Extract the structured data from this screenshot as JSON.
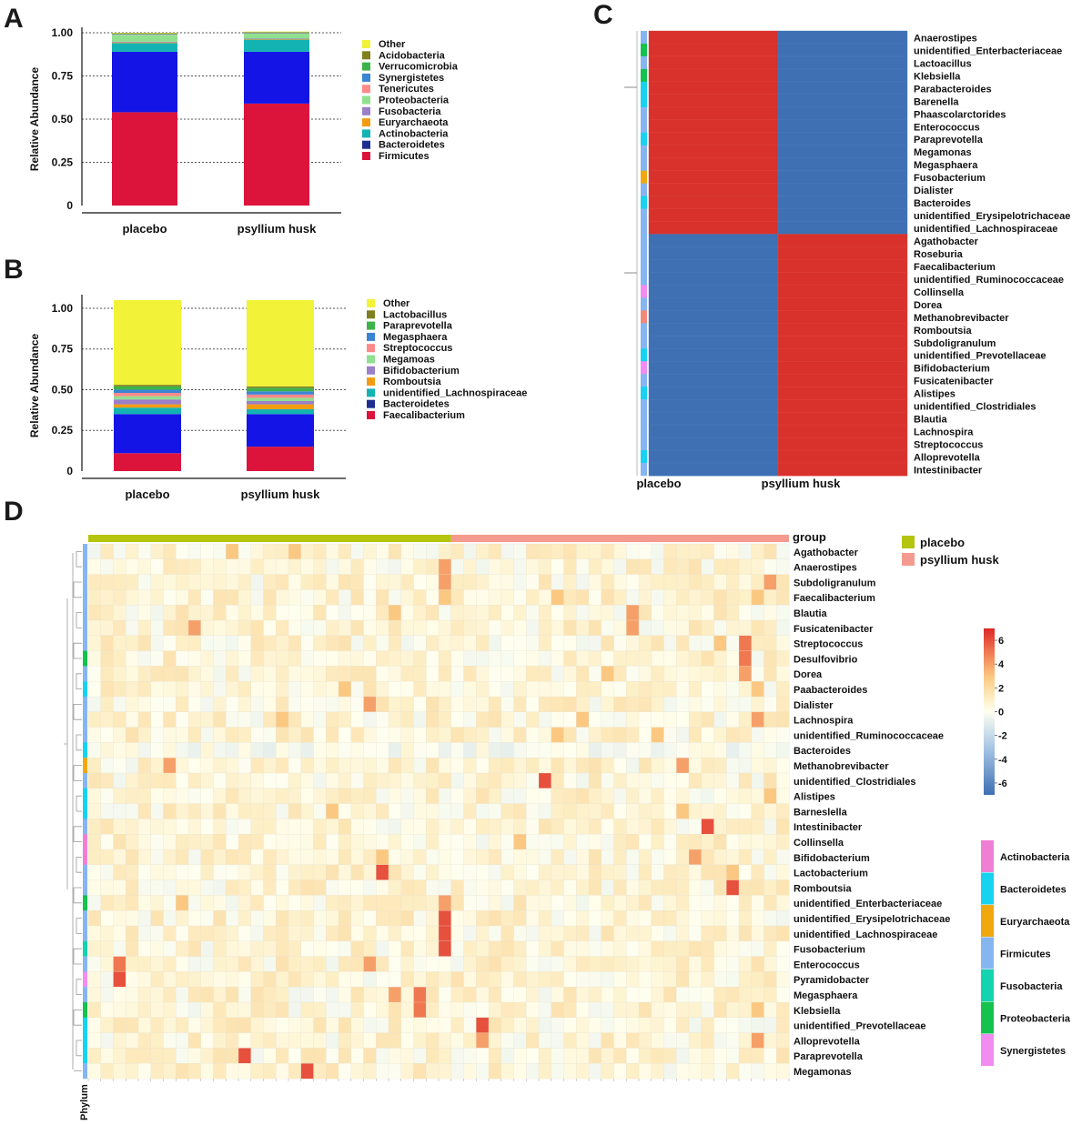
{
  "panels": {
    "A": "A",
    "B": "B",
    "C": "C",
    "D": "D"
  },
  "chart_data": [
    {
      "panel": "A",
      "type": "bar",
      "stacked": true,
      "ylabel": "Relative Abundance",
      "xlabel": "",
      "ylim": [
        0,
        1
      ],
      "yticks": [
        "0",
        "0.25",
        "0.50",
        "0.75",
        "1.00"
      ],
      "yticks_values": [
        0,
        0.25,
        0.5,
        0.75,
        1.0
      ],
      "grid": "dotted horizontal",
      "legend_position": "right",
      "categories": [
        "placebo",
        "psyllium husk"
      ],
      "series": [
        {
          "name": "Firmicutes",
          "color": "#dc143c",
          "values": [
            0.54,
            0.59
          ]
        },
        {
          "name": "Bacteroidetes",
          "color": "#1f2f8f",
          "values": [
            0.0,
            0.0
          ]
        },
        {
          "name": "Actinobacteria",
          "color": "#14b3b3",
          "values": [
            0.05,
            0.07
          ]
        },
        {
          "name": "Euryarchaeota",
          "color": "#f39c12",
          "values": [
            0.004,
            0.003
          ]
        },
        {
          "name": "Fusobacteria",
          "color": "#9b7fc9",
          "values": [
            0.004,
            0.003
          ]
        },
        {
          "name": "Proteobacteria",
          "color": "#90e090",
          "values": [
            0.04,
            0.03
          ]
        },
        {
          "name": "Tenericutes",
          "color": "#ff8888",
          "values": [
            0.003,
            0.002
          ]
        },
        {
          "name": "Synergistetes",
          "color": "#3b84d4",
          "values": [
            0.002,
            0.002
          ]
        },
        {
          "name": "Verrucomicrobia",
          "color": "#3cb34a",
          "values": [
            0.002,
            0.002
          ]
        },
        {
          "name": "Acidobacteria",
          "color": "#808020",
          "values": [
            0.002,
            0.002
          ]
        },
        {
          "name": "Other",
          "color": "#f2f238",
          "values": [
            0.003,
            0.003
          ]
        }
      ],
      "blue_segment_note": "",
      "extra_series": [
        {
          "name": "",
          "color": "#1414e6",
          "values": [
            0.35,
            0.3
          ],
          "insert_after": "Firmicutes"
        }
      ]
    },
    {
      "panel": "B",
      "type": "bar",
      "stacked": true,
      "ylabel": "Relative Abundance",
      "xlabel": "",
      "ylim": [
        0,
        1.05
      ],
      "yticks": [
        "0",
        "0.25",
        "0.50",
        "0.75",
        "1.00"
      ],
      "yticks_values": [
        0,
        0.25,
        0.5,
        0.75,
        1.0
      ],
      "grid": "dotted horizontal",
      "legend_position": "right",
      "categories": [
        "placebo",
        "psyllium husk"
      ],
      "series": [
        {
          "name": "Faecalibacterium",
          "color": "#dc143c",
          "values": [
            0.11,
            0.15
          ]
        },
        {
          "name": "",
          "color": "#1414e6",
          "values": [
            0.24,
            0.2
          ]
        },
        {
          "name": "Bacteroidetes",
          "color": "#1f2f8f",
          "values": [
            0.0,
            0.0
          ]
        },
        {
          "name": "unidentified_Lachnospiraceae",
          "color": "#14b3b3",
          "values": [
            0.04,
            0.03
          ]
        },
        {
          "name": "Romboutsia",
          "color": "#f39c12",
          "values": [
            0.02,
            0.03
          ]
        },
        {
          "name": "Bifidobacterium",
          "color": "#9b7fc9",
          "values": [
            0.03,
            0.02
          ]
        },
        {
          "name": "Megamoas",
          "color": "#90e090",
          "values": [
            0.02,
            0.02
          ]
        },
        {
          "name": "Streptococcus",
          "color": "#ff8888",
          "values": [
            0.02,
            0.02
          ]
        },
        {
          "name": "Megasphaera",
          "color": "#3b84d4",
          "values": [
            0.02,
            0.02
          ]
        },
        {
          "name": "Paraprevotella",
          "color": "#3cb34a",
          "values": [
            0.02,
            0.02
          ]
        },
        {
          "name": "Lactobacillus",
          "color": "#808020",
          "values": [
            0.01,
            0.01
          ]
        },
        {
          "name": "Other",
          "color": "#f2f238",
          "values": [
            0.52,
            0.53
          ]
        }
      ]
    },
    {
      "panel": "C",
      "type": "heatmap",
      "columns": [
        "placebo",
        "psyllium husk"
      ],
      "high_color": "#d9312b",
      "low_color": "#3e70b3",
      "rows": [
        {
          "name": "Anaerostipes",
          "values": [
            1,
            0
          ],
          "phylum": "Firmicutes"
        },
        {
          "name": "unidentified_Enterbacteriaceae",
          "values": [
            1,
            0
          ],
          "phylum": "Proteobacteria"
        },
        {
          "name": "Lactoacillus",
          "values": [
            1,
            0
          ],
          "phylum": "Firmicutes"
        },
        {
          "name": "Klebsiella",
          "values": [
            1,
            0
          ],
          "phylum": "Proteobacteria"
        },
        {
          "name": "Parabacteroides",
          "values": [
            1,
            0
          ],
          "phylum": "Bacteroidetes"
        },
        {
          "name": "Barenella",
          "values": [
            1,
            0
          ],
          "phylum": "Bacteroidetes"
        },
        {
          "name": "Phaascolarctorides",
          "values": [
            1,
            0
          ],
          "phylum": "Firmicutes"
        },
        {
          "name": "Enterococcus",
          "values": [
            1,
            0
          ],
          "phylum": "Firmicutes"
        },
        {
          "name": "Paraprevotella",
          "values": [
            1,
            0
          ],
          "phylum": "Bacteroidetes"
        },
        {
          "name": "Megamonas",
          "values": [
            1,
            0
          ],
          "phylum": "Firmicutes"
        },
        {
          "name": "Megasphaera",
          "values": [
            1,
            0
          ],
          "phylum": "Firmicutes"
        },
        {
          "name": "Fusobacterium",
          "values": [
            1,
            0
          ],
          "phylum": "Euryarchaeota"
        },
        {
          "name": "Dialister",
          "values": [
            1,
            0
          ],
          "phylum": "Firmicutes"
        },
        {
          "name": "Bacteroides",
          "values": [
            1,
            0
          ],
          "phylum": "Bacteroidetes"
        },
        {
          "name": "unidentified_Erysipelotrichaceae",
          "values": [
            1,
            0
          ],
          "phylum": "Firmicutes"
        },
        {
          "name": "unidentified_Lachnospiraceae",
          "values": [
            1,
            0
          ],
          "phylum": "Firmicutes"
        },
        {
          "name": "Agathobacter",
          "values": [
            0,
            1
          ],
          "phylum": "Firmicutes"
        },
        {
          "name": "Roseburia",
          "values": [
            0,
            1
          ],
          "phylum": "Firmicutes"
        },
        {
          "name": "Faecalibacterium",
          "values": [
            0,
            1
          ],
          "phylum": "Firmicutes"
        },
        {
          "name": "unidentified_Ruminococcaceae",
          "values": [
            0,
            1
          ],
          "phylum": "Firmicutes"
        },
        {
          "name": "Collinsella",
          "values": [
            0,
            1
          ],
          "phylum": "Synergistetes"
        },
        {
          "name": "Dorea",
          "values": [
            0,
            1
          ],
          "phylum": "Firmicutes"
        },
        {
          "name": "Methanobrevibacter",
          "values": [
            0,
            1
          ],
          "phylum": "Tenericutes"
        },
        {
          "name": "Romboutsia",
          "values": [
            0,
            1
          ],
          "phylum": "Firmicutes"
        },
        {
          "name": "Subdoligranulum",
          "values": [
            0,
            1
          ],
          "phylum": "Firmicutes"
        },
        {
          "name": "unidentified_Prevotellaceae",
          "values": [
            0,
            1
          ],
          "phylum": "Bacteroidetes"
        },
        {
          "name": "Bifidobacterium",
          "values": [
            0,
            1
          ],
          "phylum": "Synergistetes"
        },
        {
          "name": "Fusicatenibacter",
          "values": [
            0,
            1
          ],
          "phylum": "Firmicutes"
        },
        {
          "name": "Alistipes",
          "values": [
            0,
            1
          ],
          "phylum": "Bacteroidetes"
        },
        {
          "name": "unidentified_Clostridiales",
          "values": [
            0,
            1
          ],
          "phylum": "Firmicutes"
        },
        {
          "name": "Blautia",
          "values": [
            0,
            1
          ],
          "phylum": "Firmicutes"
        },
        {
          "name": "Lachnospira",
          "values": [
            0,
            1
          ],
          "phylum": "Firmicutes"
        },
        {
          "name": "Streptococcus",
          "values": [
            0,
            1
          ],
          "phylum": "Firmicutes"
        },
        {
          "name": "Alloprevotella",
          "values": [
            0,
            1
          ],
          "phylum": "Bacteroidetes"
        },
        {
          "name": "Intestinibacter",
          "values": [
            0,
            1
          ],
          "phylum": "Firmicutes"
        }
      ]
    },
    {
      "panel": "D",
      "type": "heatmap",
      "group_title": "group",
      "groups": [
        {
          "name": "placebo",
          "color": "#b5c40c",
          "count": 29
        },
        {
          "name": "psyllium husk",
          "color": "#f59a8e",
          "count": 27
        }
      ],
      "colorbar": {
        "ticks": [
          "6",
          "4",
          "2",
          "0",
          "-2",
          "-4",
          "-6"
        ],
        "tick_values": [
          6,
          4,
          2,
          0,
          -2,
          -4,
          -6
        ],
        "range": [
          -7,
          7
        ]
      },
      "phylum_title": "Phylum",
      "phylum_legend": [
        {
          "name": "Actinobacteria",
          "color": "#f07fd4"
        },
        {
          "name": "Bacteroidetes",
          "color": "#17d3f0"
        },
        {
          "name": "Euryarchaeota",
          "color": "#f0a80e"
        },
        {
          "name": "Firmicutes",
          "color": "#86b6f0"
        },
        {
          "name": "Fusobacteria",
          "color": "#14d3b0"
        },
        {
          "name": "Proteobacteria",
          "color": "#14c24e"
        },
        {
          "name": "Synergistetes",
          "color": "#f28cf0"
        }
      ],
      "rows": [
        {
          "name": "Agathobacter",
          "phylum": "Firmicutes",
          "hot": [
            [
              11,
              3
            ],
            [
              16,
              3
            ]
          ]
        },
        {
          "name": "Anaerostipes",
          "phylum": "Firmicutes",
          "hot": [
            [
              28,
              4
            ]
          ]
        },
        {
          "name": "Subdoligranulum",
          "phylum": "Firmicutes",
          "hot": [
            [
              28,
              4
            ],
            [
              54,
              4
            ]
          ]
        },
        {
          "name": "Faecalibacterium",
          "phylum": "Firmicutes",
          "hot": [
            [
              28,
              3
            ],
            [
              37,
              3
            ],
            [
              53,
              3
            ]
          ]
        },
        {
          "name": "Blautia",
          "phylum": "Firmicutes",
          "hot": [
            [
              24,
              3
            ],
            [
              43,
              4
            ]
          ]
        },
        {
          "name": "Fusicatenibacter",
          "phylum": "Firmicutes",
          "hot": [
            [
              8,
              4
            ],
            [
              43,
              4
            ]
          ]
        },
        {
          "name": "Streptococcus",
          "phylum": "Firmicutes",
          "hot": [
            [
              50,
              3
            ],
            [
              52,
              5
            ]
          ]
        },
        {
          "name": "Desulfovibrio",
          "phylum": "Proteobacteria",
          "hot": [
            [
              52,
              5
            ]
          ]
        },
        {
          "name": "Dorea",
          "phylum": "Firmicutes",
          "hot": [
            [
              41,
              3
            ],
            [
              52,
              4
            ]
          ]
        },
        {
          "name": "Paabacteroides",
          "phylum": "Bacteroidetes",
          "hot": [
            [
              20,
              3
            ],
            [
              53,
              3
            ]
          ]
        },
        {
          "name": "Dialister",
          "phylum": "Firmicutes",
          "hot": [
            [
              22,
              4
            ]
          ]
        },
        {
          "name": "Lachnospira",
          "phylum": "Firmicutes",
          "hot": [
            [
              15,
              3
            ],
            [
              39,
              3
            ],
            [
              53,
              4
            ]
          ]
        },
        {
          "name": "unidentified_Ruminococcaceae",
          "phylum": "Firmicutes",
          "hot": [
            [
              37,
              3
            ],
            [
              45,
              3
            ]
          ]
        },
        {
          "name": "Bacteroides",
          "phylum": "Bacteroidetes",
          "hot": []
        },
        {
          "name": "Methanobrevibacter",
          "phylum": "Euryarchaeota",
          "hot": [
            [
              6,
              4
            ],
            [
              47,
              4
            ]
          ]
        },
        {
          "name": "unidentified_Clostridiales",
          "phylum": "Firmicutes",
          "hot": [
            [
              36,
              6
            ]
          ]
        },
        {
          "name": "Alistipes",
          "phylum": "Bacteroidetes",
          "hot": [
            [
              54,
              3
            ]
          ]
        },
        {
          "name": "Barneslella",
          "phylum": "Bacteroidetes",
          "hot": [
            [
              19,
              3
            ],
            [
              47,
              3
            ]
          ]
        },
        {
          "name": "Intestinibacter",
          "phylum": "Firmicutes",
          "hot": [
            [
              49,
              6
            ]
          ]
        },
        {
          "name": "Collinsella",
          "phylum": "Actinobacteria",
          "hot": [
            [
              34,
              3
            ]
          ]
        },
        {
          "name": "Bifidobacterium",
          "phylum": "Actinobacteria",
          "hot": [
            [
              23,
              3
            ],
            [
              48,
              4
            ]
          ]
        },
        {
          "name": "Lactobacterium",
          "phylum": "Firmicutes",
          "hot": [
            [
              23,
              6
            ],
            [
              51,
              3
            ]
          ]
        },
        {
          "name": "Romboutsia",
          "phylum": "Firmicutes",
          "hot": [
            [
              51,
              6
            ]
          ]
        },
        {
          "name": "unidentified_Enterbacteriaceae",
          "phylum": "Proteobacteria",
          "hot": [
            [
              7,
              3
            ],
            [
              28,
              4
            ]
          ]
        },
        {
          "name": "unidentified_Erysipelotrichaceae",
          "phylum": "Firmicutes",
          "hot": [
            [
              28,
              6
            ]
          ]
        },
        {
          "name": "unidentified_Lachnospiraceae",
          "phylum": "Firmicutes",
          "hot": [
            [
              28,
              6
            ]
          ]
        },
        {
          "name": "Fusobacterium",
          "phylum": "Fusobacteria",
          "hot": [
            [
              28,
              6
            ]
          ]
        },
        {
          "name": "Enterococcus",
          "phylum": "Firmicutes",
          "hot": [
            [
              2,
              5
            ],
            [
              22,
              4
            ]
          ]
        },
        {
          "name": "Pyramidobacter",
          "phylum": "Synergistetes",
          "hot": [
            [
              2,
              6
            ]
          ]
        },
        {
          "name": "Megasphaera",
          "phylum": "Firmicutes",
          "hot": [
            [
              24,
              4
            ],
            [
              26,
              5
            ]
          ]
        },
        {
          "name": "Klebsiella",
          "phylum": "Proteobacteria",
          "hot": [
            [
              26,
              5
            ],
            [
              53,
              3
            ]
          ]
        },
        {
          "name": "unidentified_Prevotellaceae",
          "phylum": "Bacteroidetes",
          "hot": [
            [
              31,
              6
            ]
          ]
        },
        {
          "name": "Alloprevotella",
          "phylum": "Bacteroidetes",
          "hot": [
            [
              31,
              4
            ],
            [
              53,
              4
            ]
          ]
        },
        {
          "name": "Paraprevotella",
          "phylum": "Bacteroidetes",
          "hot": [
            [
              12,
              6
            ]
          ]
        },
        {
          "name": "Megamonas",
          "phylum": "Firmicutes",
          "hot": [
            [
              17,
              6
            ]
          ]
        }
      ]
    }
  ]
}
